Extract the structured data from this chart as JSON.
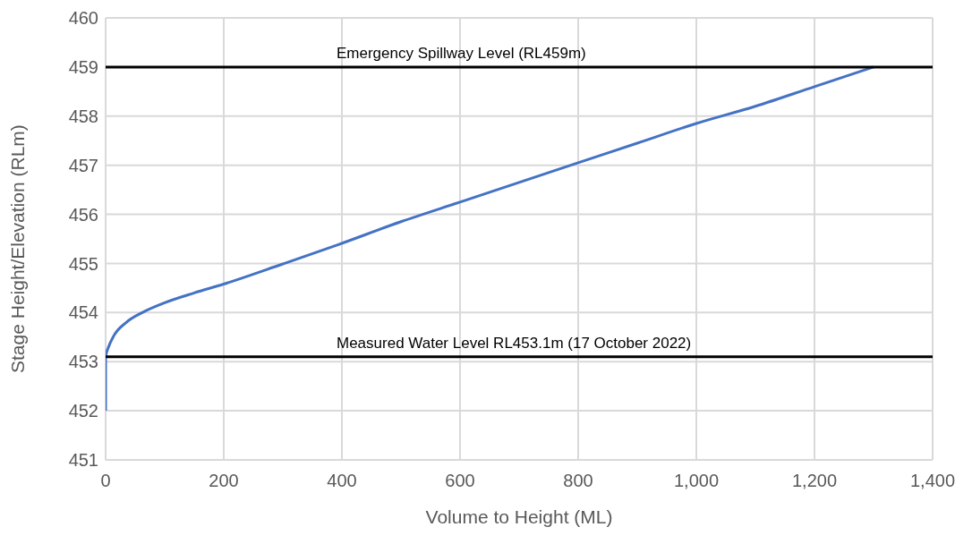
{
  "chart_data": {
    "type": "line",
    "xlabel": "Volume to Height (ML)",
    "ylabel": "Stage Height/Elevation (RLm)",
    "series": [
      {
        "color": "#4472c4",
        "x": [
          0,
          0,
          5,
          14,
          35,
          62,
          100,
          150,
          200,
          300,
          393,
          500,
          600,
          700,
          800,
          900,
          1000,
          1100,
          1200,
          1300
        ],
        "values": [
          452,
          453.1,
          453.3,
          453.53,
          453.8,
          454.0,
          454.2,
          454.4,
          454.58,
          454.99,
          455.38,
          455.85,
          456.25,
          456.65,
          457.05,
          457.45,
          457.85,
          458.2,
          458.6,
          459.0
        ]
      }
    ],
    "xlim": [
      0,
      1400
    ],
    "xticks": [
      0,
      200,
      400,
      600,
      800,
      {
        "value": 1000,
        "label": "1,000"
      },
      {
        "value": 1200,
        "label": "1,200"
      },
      {
        "value": 1400,
        "label": "1,400"
      }
    ],
    "ylim": [
      451,
      460
    ],
    "yticks": [
      451,
      452,
      453,
      454,
      455,
      456,
      457,
      458,
      459,
      460
    ],
    "ref_lines": [
      {
        "axis": "y",
        "value": 459,
        "label": "Emergency Spillway Level (RL459m)",
        "color": "#000000"
      },
      {
        "axis": "y",
        "value": 453.1,
        "label": "Measured Water Level RL453.1m (17 October 2022)",
        "color": "#000000"
      }
    ],
    "grid": true,
    "legend": false,
    "marker": "none",
    "line_style": "solid"
  }
}
